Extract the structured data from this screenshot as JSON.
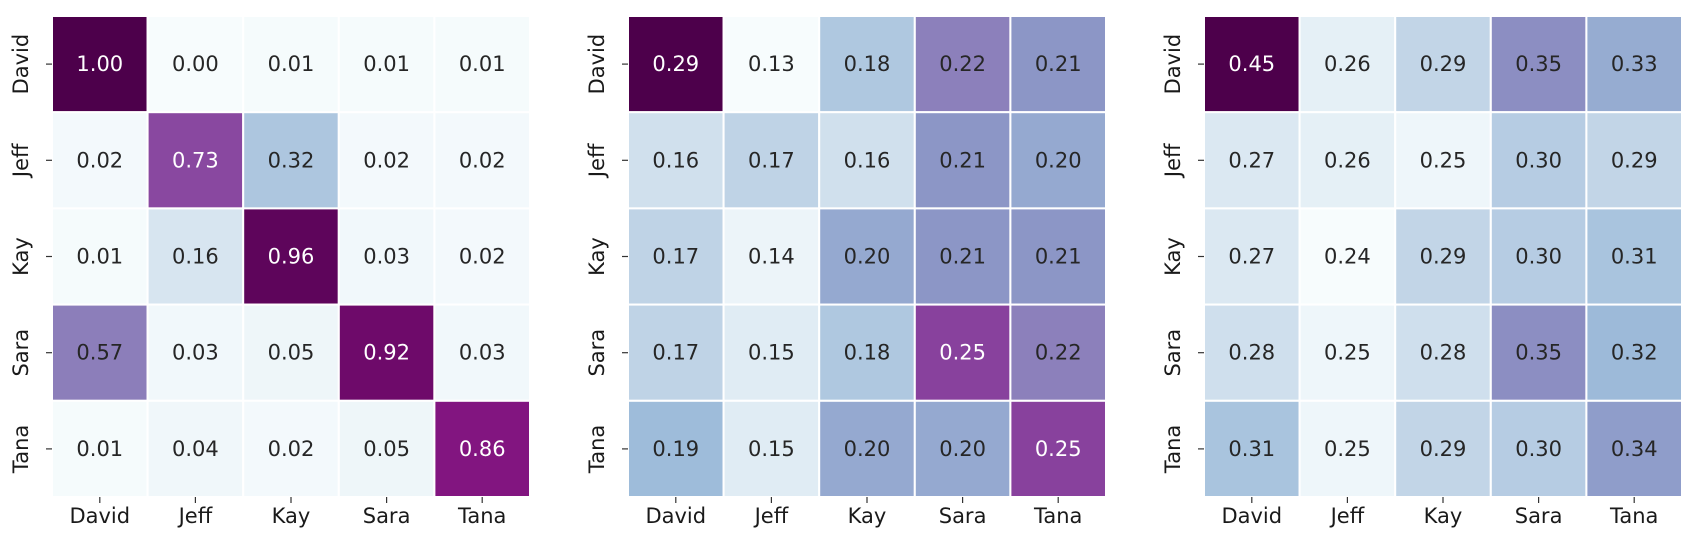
{
  "chart_data": [
    {
      "type": "heatmap",
      "title": "",
      "xlabel": "",
      "ylabel": "",
      "x_categories": [
        "David",
        "Jeff",
        "Kay",
        "Sara",
        "Tana"
      ],
      "y_categories": [
        "David",
        "Jeff",
        "Kay",
        "Sara",
        "Tana"
      ],
      "colormap": "BuPu",
      "colorbar": false,
      "vmin": 0.0,
      "vmax": 1.0,
      "values": [
        [
          1.0,
          0.0,
          0.01,
          0.01,
          0.01
        ],
        [
          0.02,
          0.73,
          0.32,
          0.02,
          0.02
        ],
        [
          0.01,
          0.16,
          0.96,
          0.03,
          0.02
        ],
        [
          0.57,
          0.03,
          0.05,
          0.92,
          0.03
        ],
        [
          0.01,
          0.04,
          0.02,
          0.05,
          0.86
        ]
      ],
      "labels": [
        [
          "1.00",
          "0.00",
          "0.01",
          "0.01",
          "0.01"
        ],
        [
          "0.02",
          "0.73",
          "0.32",
          "0.02",
          "0.02"
        ],
        [
          "0.01",
          "0.16",
          "0.96",
          "0.03",
          "0.02"
        ],
        [
          "0.57",
          "0.03",
          "0.05",
          "0.92",
          "0.03"
        ],
        [
          "0.01",
          "0.04",
          "0.02",
          "0.05",
          "0.86"
        ]
      ]
    },
    {
      "type": "heatmap",
      "title": "",
      "xlabel": "",
      "ylabel": "",
      "x_categories": [
        "David",
        "Jeff",
        "Kay",
        "Sara",
        "Tana"
      ],
      "y_categories": [
        "David",
        "Jeff",
        "Kay",
        "Sara",
        "Tana"
      ],
      "colormap": "BuPu",
      "colorbar": false,
      "vmin": 0.13,
      "vmax": 0.29,
      "values": [
        [
          0.29,
          0.13,
          0.18,
          0.22,
          0.21
        ],
        [
          0.16,
          0.17,
          0.16,
          0.21,
          0.2
        ],
        [
          0.17,
          0.14,
          0.2,
          0.21,
          0.21
        ],
        [
          0.17,
          0.15,
          0.18,
          0.25,
          0.22
        ],
        [
          0.19,
          0.15,
          0.2,
          0.2,
          0.25
        ]
      ],
      "labels": [
        [
          "0.29",
          "0.13",
          "0.18",
          "0.22",
          "0.21"
        ],
        [
          "0.16",
          "0.17",
          "0.16",
          "0.21",
          "0.20"
        ],
        [
          "0.17",
          "0.14",
          "0.20",
          "0.21",
          "0.21"
        ],
        [
          "0.17",
          "0.15",
          "0.18",
          "0.25",
          "0.22"
        ],
        [
          "0.19",
          "0.15",
          "0.20",
          "0.20",
          "0.25"
        ]
      ]
    },
    {
      "type": "heatmap",
      "title": "",
      "xlabel": "",
      "ylabel": "",
      "x_categories": [
        "David",
        "Jeff",
        "Kay",
        "Sara",
        "Tana"
      ],
      "y_categories": [
        "David",
        "Jeff",
        "Kay",
        "Sara",
        "Tana"
      ],
      "colormap": "BuPu",
      "colorbar": false,
      "vmin": 0.24,
      "vmax": 0.45,
      "values": [
        [
          0.45,
          0.26,
          0.29,
          0.35,
          0.33
        ],
        [
          0.27,
          0.26,
          0.25,
          0.3,
          0.29
        ],
        [
          0.27,
          0.24,
          0.29,
          0.3,
          0.31
        ],
        [
          0.28,
          0.25,
          0.28,
          0.35,
          0.32
        ],
        [
          0.31,
          0.25,
          0.29,
          0.3,
          0.34
        ]
      ],
      "labels": [
        [
          "0.45",
          "0.26",
          "0.29",
          "0.35",
          "0.33"
        ],
        [
          "0.27",
          "0.26",
          "0.25",
          "0.30",
          "0.29"
        ],
        [
          "0.27",
          "0.24",
          "0.29",
          "0.30",
          "0.31"
        ],
        [
          "0.28",
          "0.25",
          "0.28",
          "0.35",
          "0.32"
        ],
        [
          "0.31",
          "0.25",
          "0.29",
          "0.30",
          "0.34"
        ]
      ]
    }
  ]
}
